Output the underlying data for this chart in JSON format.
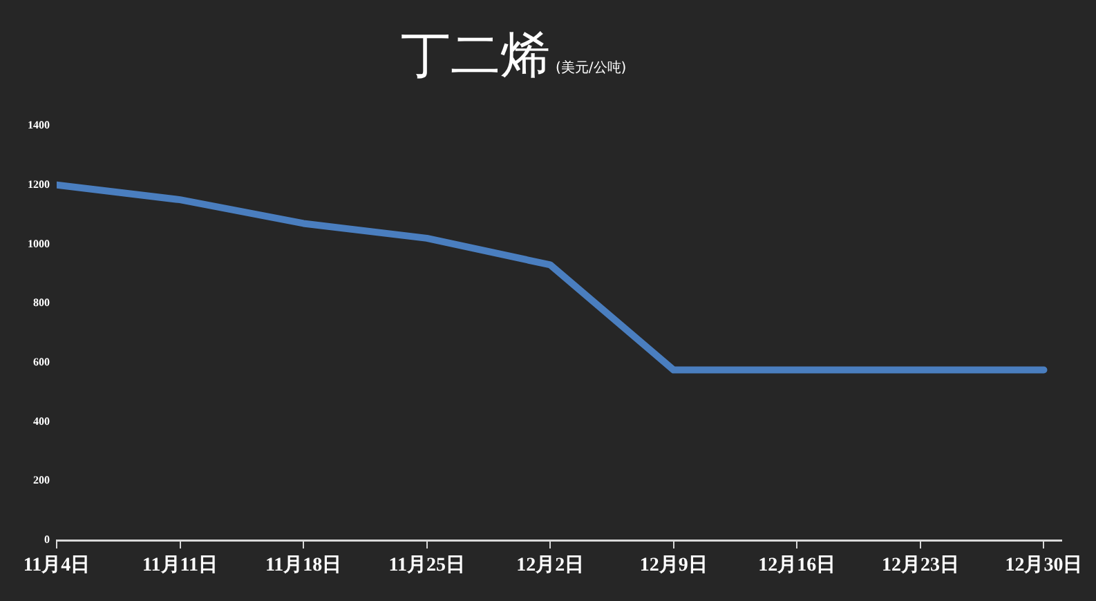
{
  "chart_data": {
    "type": "line",
    "title": "丁二烯",
    "subtitle": "(美元/公吨)",
    "x": [
      "--11-04",
      "--11-11",
      "--11-18",
      "--11-25",
      "--12-02",
      "--12-09",
      "--12-16",
      "--12-23",
      "--12-30"
    ],
    "series": [
      {
        "color": "#4a7ebf",
        "values": [
          1200,
          1150,
          1070,
          1020,
          930,
          575,
          575,
          575,
          575
        ]
      }
    ],
    "xlim": [
      "--11-04",
      "--12-31"
    ],
    "xticks": [
      {
        "value": "--11-04",
        "label": "11月4日"
      },
      {
        "value": "--11-11",
        "label": "11月11日"
      },
      {
        "value": "--11-18",
        "label": "11月18日"
      },
      {
        "value": "--11-25",
        "label": "11月25日"
      },
      {
        "value": "--12-02",
        "label": "12月2日"
      },
      {
        "value": "--12-09",
        "label": "12月9日"
      },
      {
        "value": "--12-16",
        "label": "12月16日"
      },
      {
        "value": "--12-23",
        "label": "12月23日"
      },
      {
        "value": "--12-30",
        "label": "12月30日"
      }
    ],
    "ylim": [
      0,
      1400
    ],
    "yticks": [
      0,
      200,
      400,
      600,
      800,
      1000,
      1200,
      1400
    ],
    "grid": false,
    "legend": false,
    "marker": "none",
    "line_style": "solid"
  }
}
